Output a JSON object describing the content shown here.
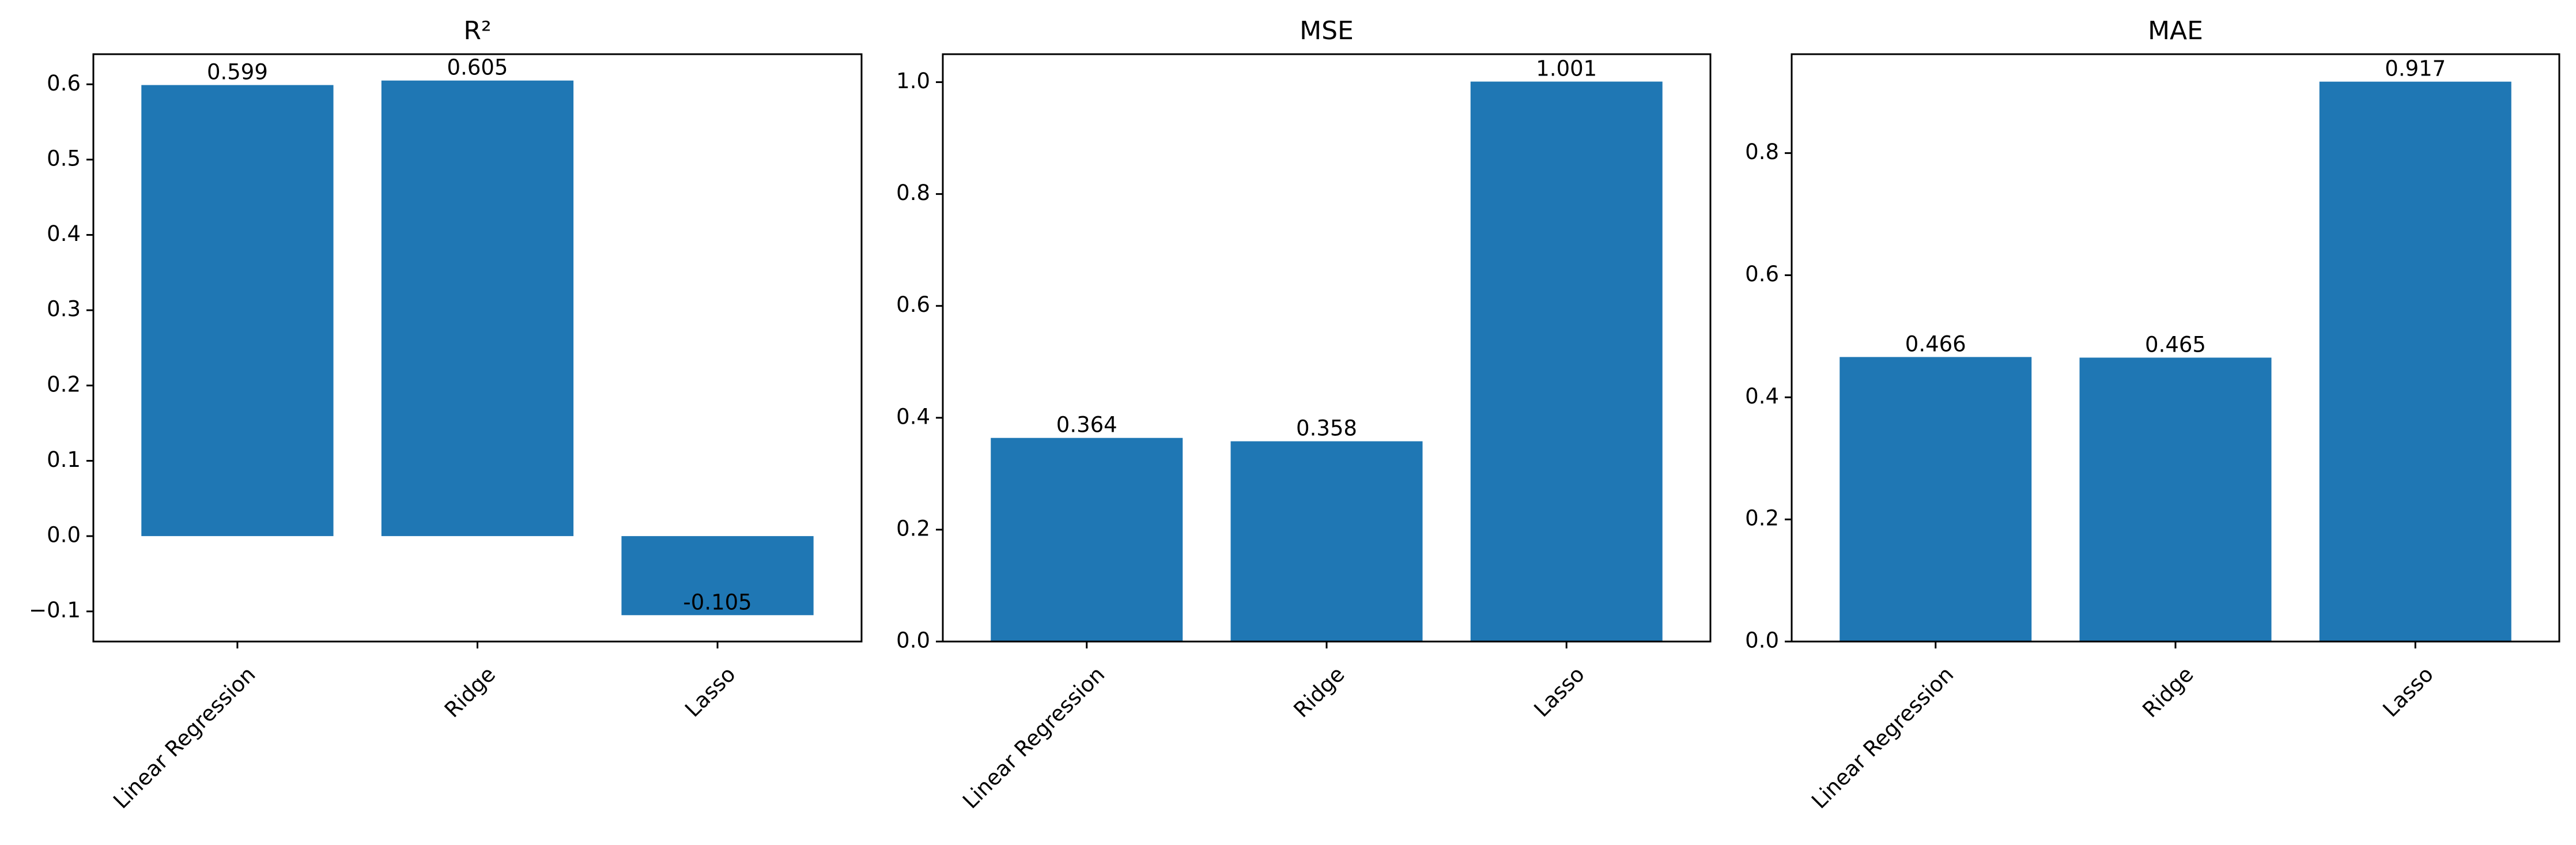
{
  "chart_data": [
    {
      "type": "bar",
      "title": "R²",
      "categories": [
        "Linear Regression",
        "Ridge",
        "Lasso"
      ],
      "values": [
        0.599,
        0.605,
        -0.105
      ],
      "value_labels": [
        "0.599",
        "0.605",
        "-0.105"
      ],
      "ylim": [
        -0.14,
        0.64
      ],
      "yticks": [
        -0.1,
        0.0,
        0.1,
        0.2,
        0.3,
        0.4,
        0.5,
        0.6
      ],
      "ytick_labels": [
        "−0.1",
        "0.0",
        "0.1",
        "0.2",
        "0.3",
        "0.4",
        "0.5",
        "0.6"
      ],
      "xlabel": "",
      "ylabel": "",
      "grid": false
    },
    {
      "type": "bar",
      "title": "MSE",
      "categories": [
        "Linear Regression",
        "Ridge",
        "Lasso"
      ],
      "values": [
        0.364,
        0.358,
        1.001
      ],
      "value_labels": [
        "0.364",
        "0.358",
        "1.001"
      ],
      "ylim": [
        0,
        1.05
      ],
      "yticks": [
        0.0,
        0.2,
        0.4,
        0.6,
        0.8,
        1.0
      ],
      "ytick_labels": [
        "0.0",
        "0.2",
        "0.4",
        "0.6",
        "0.8",
        "1.0"
      ],
      "xlabel": "",
      "ylabel": "",
      "grid": false
    },
    {
      "type": "bar",
      "title": "MAE",
      "categories": [
        "Linear Regression",
        "Ridge",
        "Lasso"
      ],
      "values": [
        0.466,
        0.465,
        0.917
      ],
      "value_labels": [
        "0.466",
        "0.465",
        "0.917"
      ],
      "ylim": [
        0,
        0.962
      ],
      "yticks": [
        0.0,
        0.2,
        0.4,
        0.6,
        0.8
      ],
      "ytick_labels": [
        "0.0",
        "0.2",
        "0.4",
        "0.6",
        "0.8"
      ],
      "xlabel": "",
      "ylabel": "",
      "grid": false
    }
  ],
  "colors": {
    "bar": "#1f77b4",
    "axes": "#000000",
    "background": "#ffffff"
  }
}
